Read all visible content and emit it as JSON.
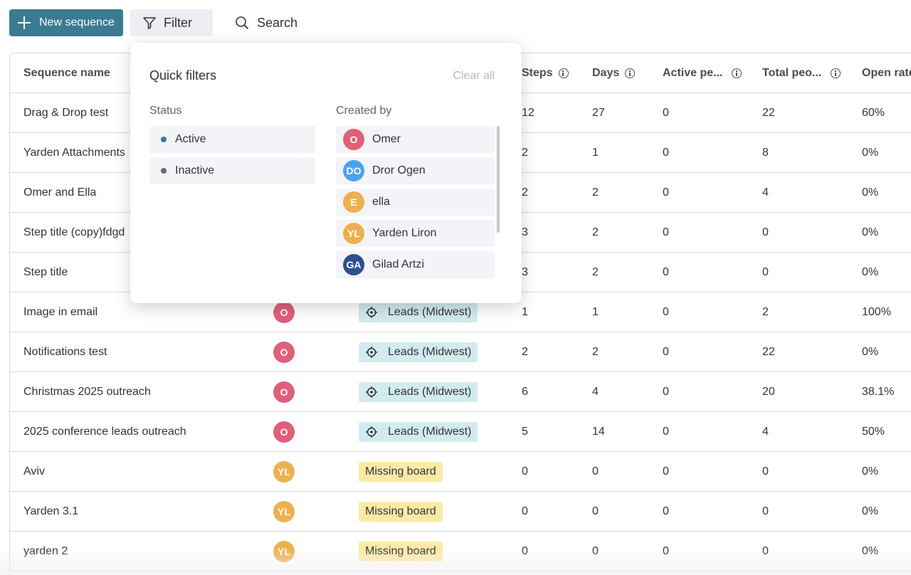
{
  "toolbar": {
    "new_label": "New sequence",
    "filter_label": "Filter",
    "search_label": "Search"
  },
  "columns": {
    "name": "Sequence name",
    "steps": "Steps",
    "days": "Days",
    "active": "Active pe...",
    "total": "Total peo...",
    "open": "Open rate"
  },
  "colors": {
    "accent": "#3a7a93",
    "avatar_omer": "#e06078",
    "avatar_dror": "#4aa3f0",
    "avatar_ella": "#eeb04f",
    "avatar_yarden": "#eeb04f",
    "avatar_gilad": "#2e4f8f",
    "active_dot": "#3a7a93",
    "inactive_dot": "#676879"
  },
  "rows": [
    {
      "name": "Drag & Drop test",
      "steps": "12",
      "days": "27",
      "active": "0",
      "total": "22",
      "open": "60%"
    },
    {
      "name": "Yarden Attachments",
      "steps": "2",
      "days": "1",
      "active": "0",
      "total": "8",
      "open": "0%"
    },
    {
      "name": "Omer and Ella",
      "steps": "2",
      "days": "2",
      "active": "0",
      "total": "4",
      "open": "0%"
    },
    {
      "name": "Step title (copy)fdgd",
      "steps": "3",
      "days": "2",
      "active": "0",
      "total": "0",
      "open": "0%"
    },
    {
      "name": "Step title",
      "steps": "3",
      "days": "2",
      "active": "0",
      "total": "0",
      "open": "0%"
    },
    {
      "name": "Image in email",
      "creator": "O",
      "board": "Leads (Midwest)",
      "steps": "1",
      "days": "1",
      "active": "0",
      "total": "2",
      "open": "100%"
    },
    {
      "name": "Notifications test",
      "creator": "O",
      "board": "Leads (Midwest)",
      "steps": "2",
      "days": "2",
      "active": "0",
      "total": "22",
      "open": "0%"
    },
    {
      "name": "Christmas 2025 outreach",
      "creator": "O",
      "board": "Leads (Midwest)",
      "steps": "6",
      "days": "4",
      "active": "0",
      "total": "20",
      "open": "38.1%"
    },
    {
      "name": "2025 conference leads outreach",
      "creator": "O",
      "board": "Leads (Midwest)",
      "steps": "5",
      "days": "14",
      "active": "0",
      "total": "4",
      "open": "50%"
    },
    {
      "name": "Aviv",
      "creator": "YL",
      "board": "Missing board",
      "steps": "0",
      "days": "0",
      "active": "0",
      "total": "0",
      "open": "0%"
    },
    {
      "name": "Yarden 3.1",
      "creator": "YL",
      "board": "Missing board",
      "steps": "0",
      "days": "0",
      "active": "0",
      "total": "0",
      "open": "0%"
    },
    {
      "name": "yarden 2",
      "creator": "YL",
      "board": "Missing board",
      "steps": "0",
      "days": "0",
      "active": "0",
      "total": "0",
      "open": "0%"
    }
  ],
  "popover": {
    "title": "Quick filters",
    "clear_label": "Clear all",
    "status_label": "Status",
    "created_label": "Created by",
    "statuses": [
      "Active",
      "Inactive"
    ],
    "creators": [
      {
        "initials": "O",
        "name": "Omer"
      },
      {
        "initials": "DO",
        "name": "Dror Ogen"
      },
      {
        "initials": "E",
        "name": "ella"
      },
      {
        "initials": "YL",
        "name": "Yarden Liron"
      },
      {
        "initials": "GA",
        "name": "Gilad Artzi"
      }
    ]
  }
}
